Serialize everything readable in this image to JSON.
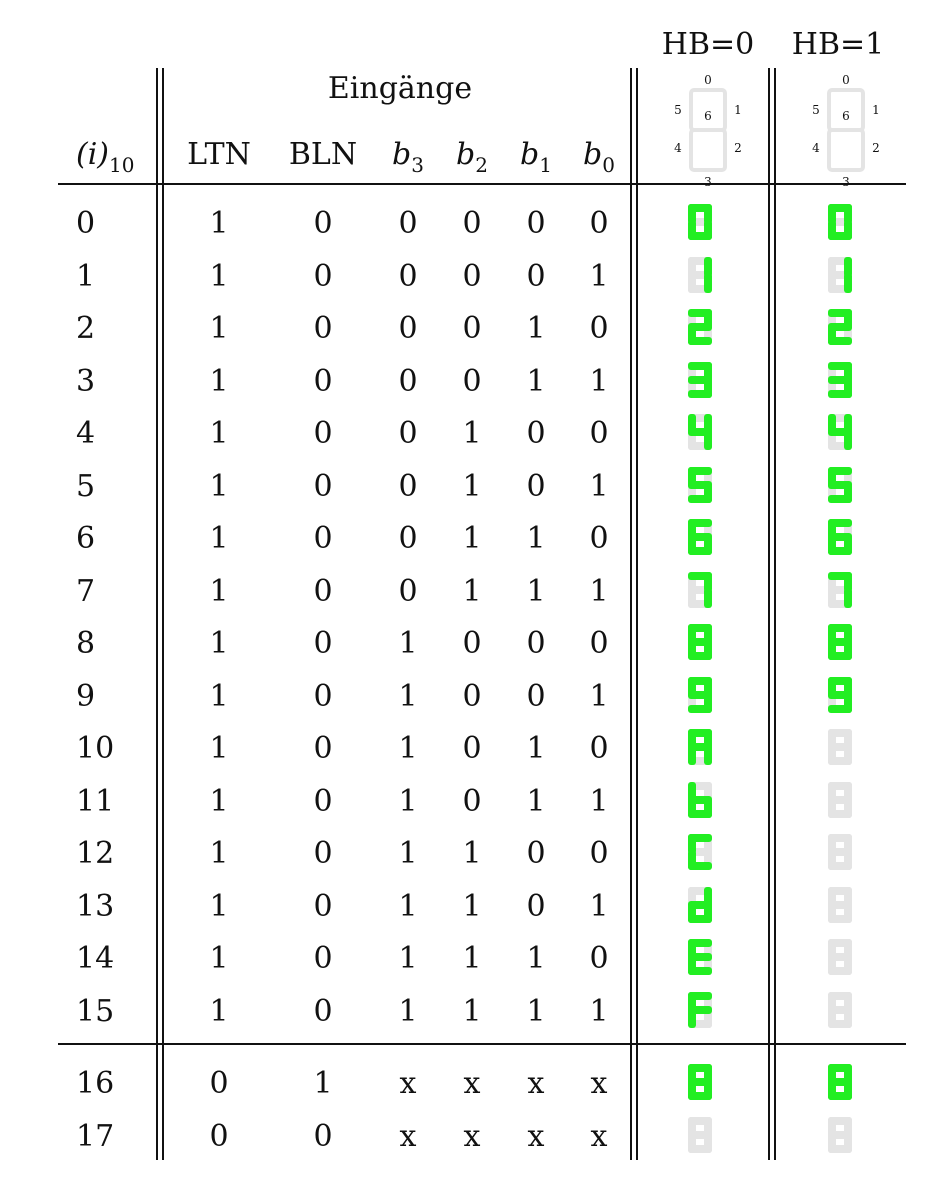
{
  "header": {
    "group_label": "Eingänge",
    "index_label": "(i)",
    "index_sub": "10",
    "columns": [
      {
        "main": "LTN",
        "sub": "",
        "italic": false
      },
      {
        "main": "BLN",
        "sub": "",
        "italic": false
      },
      {
        "main": "b",
        "sub": "3",
        "italic": true
      },
      {
        "main": "b",
        "sub": "2",
        "italic": true
      },
      {
        "main": "b",
        "sub": "1",
        "italic": true
      },
      {
        "main": "b",
        "sub": "0",
        "italic": true
      }
    ],
    "hb0_label": "HB=0",
    "hb1_label": "HB=1",
    "segment_labels": [
      "0",
      "1",
      "2",
      "3",
      "4",
      "5",
      "6"
    ]
  },
  "colors": {
    "segment_on": "#22ee22",
    "segment_off": "#e4e4e4",
    "line": "#111111"
  },
  "rows": [
    {
      "i": "0",
      "ltn": "1",
      "bln": "0",
      "b3": "0",
      "b2": "0",
      "b1": "0",
      "b0": "0",
      "hb0": "0",
      "hb1": "0"
    },
    {
      "i": "1",
      "ltn": "1",
      "bln": "0",
      "b3": "0",
      "b2": "0",
      "b1": "0",
      "b0": "1",
      "hb0": "1",
      "hb1": "1"
    },
    {
      "i": "2",
      "ltn": "1",
      "bln": "0",
      "b3": "0",
      "b2": "0",
      "b1": "1",
      "b0": "0",
      "hb0": "2",
      "hb1": "2"
    },
    {
      "i": "3",
      "ltn": "1",
      "bln": "0",
      "b3": "0",
      "b2": "0",
      "b1": "1",
      "b0": "1",
      "hb0": "3",
      "hb1": "3"
    },
    {
      "i": "4",
      "ltn": "1",
      "bln": "0",
      "b3": "0",
      "b2": "1",
      "b1": "0",
      "b0": "0",
      "hb0": "4",
      "hb1": "4"
    },
    {
      "i": "5",
      "ltn": "1",
      "bln": "0",
      "b3": "0",
      "b2": "1",
      "b1": "0",
      "b0": "1",
      "hb0": "5",
      "hb1": "5"
    },
    {
      "i": "6",
      "ltn": "1",
      "bln": "0",
      "b3": "0",
      "b2": "1",
      "b1": "1",
      "b0": "0",
      "hb0": "6",
      "hb1": "6"
    },
    {
      "i": "7",
      "ltn": "1",
      "bln": "0",
      "b3": "0",
      "b2": "1",
      "b1": "1",
      "b0": "1",
      "hb0": "7",
      "hb1": "7"
    },
    {
      "i": "8",
      "ltn": "1",
      "bln": "0",
      "b3": "1",
      "b2": "0",
      "b1": "0",
      "b0": "0",
      "hb0": "8",
      "hb1": "8"
    },
    {
      "i": "9",
      "ltn": "1",
      "bln": "0",
      "b3": "1",
      "b2": "0",
      "b1": "0",
      "b0": "1",
      "hb0": "9",
      "hb1": "9"
    },
    {
      "i": "10",
      "ltn": "1",
      "bln": "0",
      "b3": "1",
      "b2": "0",
      "b1": "1",
      "b0": "0",
      "hb0": "A",
      "hb1": "off"
    },
    {
      "i": "11",
      "ltn": "1",
      "bln": "0",
      "b3": "1",
      "b2": "0",
      "b1": "1",
      "b0": "1",
      "hb0": "b",
      "hb1": "off"
    },
    {
      "i": "12",
      "ltn": "1",
      "bln": "0",
      "b3": "1",
      "b2": "1",
      "b1": "0",
      "b0": "0",
      "hb0": "C",
      "hb1": "off"
    },
    {
      "i": "13",
      "ltn": "1",
      "bln": "0",
      "b3": "1",
      "b2": "1",
      "b1": "0",
      "b0": "1",
      "hb0": "d",
      "hb1": "off"
    },
    {
      "i": "14",
      "ltn": "1",
      "bln": "0",
      "b3": "1",
      "b2": "1",
      "b1": "1",
      "b0": "0",
      "hb0": "E",
      "hb1": "off"
    },
    {
      "i": "15",
      "ltn": "1",
      "bln": "0",
      "b3": "1",
      "b2": "1",
      "b1": "1",
      "b0": "1",
      "hb0": "F",
      "hb1": "off"
    },
    {
      "i": "16",
      "ltn": "0",
      "bln": "1",
      "b3": "x",
      "b2": "x",
      "b1": "x",
      "b0": "x",
      "hb0": "8",
      "hb1": "8"
    },
    {
      "i": "17",
      "ltn": "0",
      "bln": "0",
      "b3": "x",
      "b2": "x",
      "b1": "x",
      "b0": "x",
      "hb0": "off",
      "hb1": "off"
    }
  ]
}
